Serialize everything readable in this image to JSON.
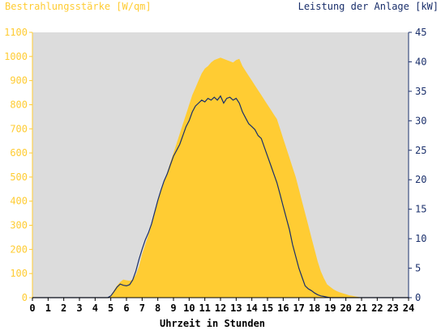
{
  "chart_data": {
    "type": "area",
    "ylabel_left": "Bestrahlungsstärke [W/qm]",
    "ylabel_right": "Leistung der Anlage [kW]",
    "xlabel": "Uhrzeit in Stunden",
    "x_ticks": [
      "0",
      "1",
      "2",
      "3",
      "4",
      "5",
      "6",
      "7",
      "8",
      "9",
      "10",
      "11",
      "12",
      "13",
      "14",
      "15",
      "16",
      "17",
      "18",
      "19",
      "20",
      "21",
      "22",
      "23",
      "24"
    ],
    "y_left_ticks": [
      "0",
      "100",
      "200",
      "300",
      "400",
      "500",
      "600",
      "700",
      "800",
      "900",
      "1000",
      "1100"
    ],
    "y_right_ticks": [
      "0",
      "5",
      "10",
      "15",
      "20",
      "25",
      "30",
      "35",
      "40",
      "45"
    ],
    "xlim": [
      0,
      24
    ],
    "ylim_left": [
      0,
      1100
    ],
    "ylim_right": [
      0,
      45
    ],
    "grid": false,
    "series": [
      {
        "name": "Bestrahlungsstärke [W/qm]",
        "axis": "left",
        "color": "#ffcc33",
        "style": "filled-area",
        "x": [
          0,
          4.8,
          5.0,
          5.2,
          5.4,
          5.6,
          5.8,
          6.0,
          6.2,
          6.4,
          6.6,
          6.8,
          7.0,
          7.2,
          7.4,
          7.6,
          7.8,
          8.0,
          8.2,
          8.4,
          8.6,
          8.8,
          9.0,
          9.2,
          9.4,
          9.6,
          9.8,
          10.0,
          10.2,
          10.4,
          10.6,
          10.8,
          11.0,
          11.2,
          11.4,
          11.6,
          11.8,
          12.0,
          12.2,
          12.4,
          12.6,
          12.8,
          13.0,
          13.2,
          13.4,
          13.6,
          13.8,
          14.0,
          14.2,
          14.4,
          14.6,
          14.8,
          15.0,
          15.2,
          15.4,
          15.6,
          15.8,
          16.0,
          16.2,
          16.4,
          16.6,
          16.8,
          17.0,
          17.2,
          17.4,
          17.6,
          17.8,
          18.0,
          18.2,
          18.4,
          18.6,
          18.8,
          19.0,
          19.2,
          19.4,
          19.6,
          19.8,
          20.0,
          20.2,
          20.4,
          20.6,
          20.8,
          21.0,
          24
        ],
        "y": [
          0,
          0,
          10,
          30,
          50,
          65,
          75,
          72,
          70,
          75,
          95,
          130,
          180,
          220,
          260,
          300,
          350,
          400,
          440,
          480,
          520,
          560,
          600,
          640,
          680,
          720,
          760,
          800,
          840,
          870,
          900,
          930,
          950,
          960,
          975,
          985,
          990,
          995,
          990,
          985,
          980,
          975,
          985,
          990,
          960,
          940,
          920,
          900,
          880,
          860,
          840,
          820,
          800,
          780,
          760,
          740,
          700,
          660,
          620,
          580,
          540,
          500,
          450,
          400,
          350,
          300,
          250,
          200,
          150,
          110,
          80,
          55,
          45,
          35,
          28,
          22,
          18,
          14,
          10,
          8,
          5,
          3,
          0,
          0
        ]
      },
      {
        "name": "Leistung der Anlage [kW]",
        "axis": "right",
        "color": "#1a2f6b",
        "style": "line",
        "x": [
          0,
          4.8,
          5.0,
          5.2,
          5.4,
          5.6,
          5.8,
          6.0,
          6.2,
          6.4,
          6.6,
          6.8,
          7.0,
          7.2,
          7.4,
          7.6,
          7.8,
          8.0,
          8.2,
          8.4,
          8.6,
          8.8,
          9.0,
          9.2,
          9.4,
          9.6,
          9.8,
          10.0,
          10.2,
          10.4,
          10.6,
          10.8,
          11.0,
          11.2,
          11.4,
          11.6,
          11.8,
          12.0,
          12.2,
          12.4,
          12.6,
          12.8,
          13.0,
          13.2,
          13.4,
          13.6,
          13.8,
          14.0,
          14.2,
          14.4,
          14.6,
          14.8,
          15.0,
          15.2,
          15.4,
          15.6,
          15.8,
          16.0,
          16.2,
          16.4,
          16.6,
          16.8,
          17.0,
          17.2,
          17.4,
          17.6,
          17.8,
          18.0,
          18.2,
          18.4,
          18.6,
          18.8,
          19.0,
          19.2,
          19.4,
          19.6,
          19.8,
          20.0,
          20.2,
          20.4,
          20.6,
          20.8,
          21.0,
          24
        ],
        "y": [
          0,
          0,
          0.3,
          1.0,
          1.8,
          2.3,
          2.1,
          2.0,
          2.2,
          3.0,
          4.5,
          6.5,
          8.2,
          9.8,
          11.0,
          12.5,
          14.5,
          16.5,
          18.2,
          19.8,
          21.0,
          22.5,
          24.0,
          25.0,
          26.0,
          27.5,
          29.0,
          30.0,
          31.5,
          32.5,
          33.0,
          33.5,
          33.2,
          33.8,
          33.5,
          34.0,
          33.5,
          34.2,
          33.0,
          33.8,
          34.0,
          33.5,
          33.8,
          33.0,
          31.5,
          30.5,
          29.5,
          29.0,
          28.5,
          27.5,
          27.0,
          25.5,
          24.0,
          22.5,
          21.0,
          19.5,
          17.5,
          15.5,
          13.5,
          11.5,
          9.0,
          7.0,
          5.0,
          3.5,
          2.0,
          1.5,
          1.2,
          0.8,
          0.5,
          0.3,
          0.2,
          0.1,
          0,
          0,
          0,
          0,
          0,
          0,
          0,
          0,
          0,
          0,
          0,
          0
        ]
      }
    ]
  }
}
